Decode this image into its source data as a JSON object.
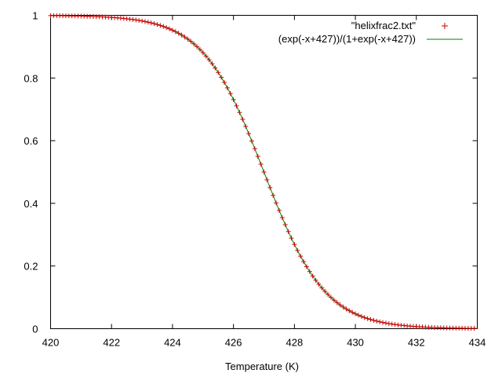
{
  "chart_data": {
    "type": "scatter",
    "title": "",
    "xlabel": "Temperature (K)",
    "ylabel": "",
    "xlim": [
      420,
      434
    ],
    "ylim": [
      0,
      1
    ],
    "x_ticks": [
      420,
      422,
      424,
      426,
      428,
      430,
      432,
      434
    ],
    "y_ticks": [
      0,
      0.2,
      0.4,
      0.6,
      0.8,
      1
    ],
    "x_tick_labels": [
      "420",
      "422",
      "424",
      "426",
      "428",
      "430",
      "432",
      "434"
    ],
    "y_tick_labels": [
      "0",
      "0.2",
      "0.4",
      "0.6",
      "0.8",
      "1"
    ],
    "grid": false,
    "legend_position": "top-right",
    "series": [
      {
        "name": "\"helixfrac2.txt\"",
        "kind": "points",
        "marker": "+",
        "color": "#cc0000",
        "x_start": 420,
        "x_end": 433.9,
        "x_step": 0.1,
        "y_function": "exp(-x+427)/(1+exp(-x+427))"
      },
      {
        "name": "(exp(-x+427))/(1+exp(-x+427))",
        "kind": "line",
        "color": "#008000",
        "function": "exp(-x+427)/(1+exp(-x+427))",
        "domain": [
          420,
          434
        ]
      }
    ]
  }
}
